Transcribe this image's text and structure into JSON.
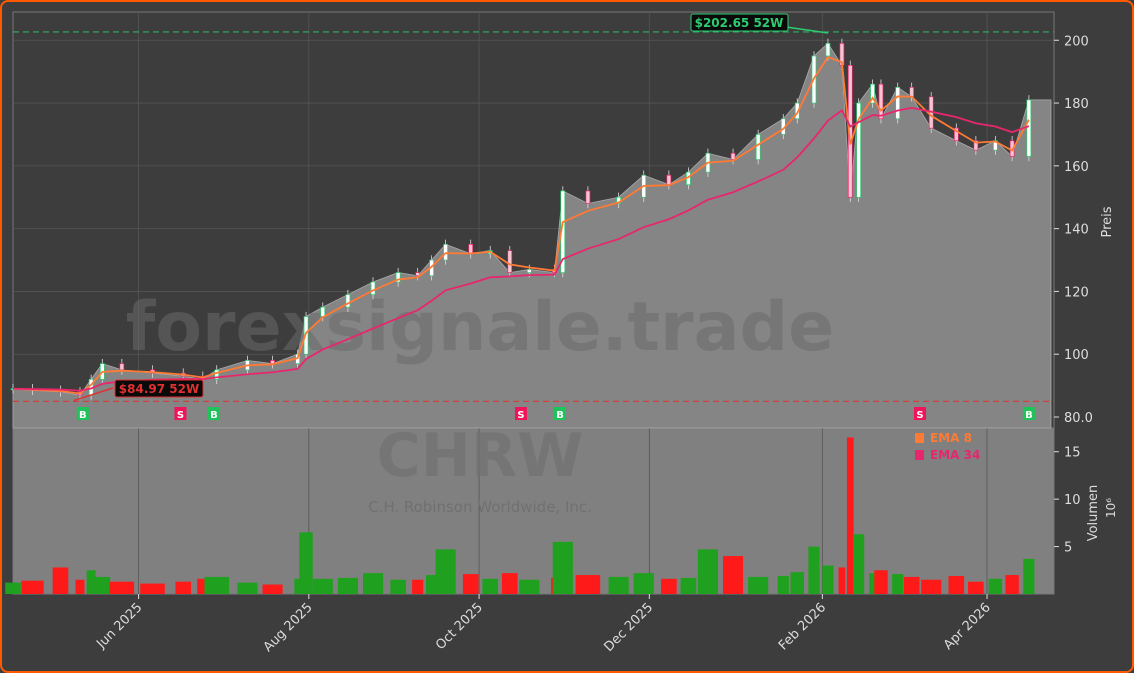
{
  "chart_data": {
    "type": "candlestick",
    "ticker": "CHRW",
    "company": "C.H. Robinson Worldwide, Inc.",
    "watermark": "forexsignale.trade",
    "price_axis": {
      "label": "Preis",
      "ticks": [
        80,
        100,
        120,
        140,
        160,
        180,
        200
      ],
      "ylim": [
        76.5,
        209
      ]
    },
    "volume_axis": {
      "label": "Volumen",
      "unit": "10⁶",
      "ticks": [
        5,
        10,
        15
      ],
      "ylim": [
        0,
        17.5
      ]
    },
    "x_ticks": [
      {
        "label": "Jun 2025",
        "date": "2025-06-01"
      },
      {
        "label": "Aug 2025",
        "date": "2025-08-01"
      },
      {
        "label": "Oct 2025",
        "date": "2025-10-01"
      },
      {
        "label": "Dec 2025",
        "date": "2025-12-01"
      },
      {
        "label": "Feb 2026",
        "date": "2026-02-01"
      },
      {
        "label": "Apr 2026",
        "date": "2026-04-01"
      }
    ],
    "xlim": [
      "2025-04-17",
      "2026-04-25"
    ],
    "grid": true,
    "legend": {
      "placement": "upper-right of volume panel",
      "entries": [
        {
          "name": "EMA 8",
          "color": "#ff7a33"
        },
        {
          "name": "EMA 34",
          "color": "#e8266e"
        }
      ]
    },
    "high_52w": {
      "value": 202.65,
      "label": "$202.65 52W",
      "date": "2026-02-03",
      "color": "#2ecc71"
    },
    "low_52w": {
      "value": 84.97,
      "label": "$84.97 52W",
      "date": "2025-05-11",
      "color": "#e03030"
    },
    "signals": [
      {
        "type": "B",
        "date": "2025-05-12"
      },
      {
        "type": "S",
        "date": "2025-06-16"
      },
      {
        "type": "B",
        "date": "2025-06-28"
      },
      {
        "type": "S",
        "date": "2025-10-16"
      },
      {
        "type": "B",
        "date": "2025-10-30"
      },
      {
        "type": "S",
        "date": "2026-03-08"
      },
      {
        "type": "B",
        "date": "2026-04-16"
      }
    ],
    "series": {
      "dates": [
        "2025-04-17",
        "2025-04-24",
        "2025-05-04",
        "2025-05-11",
        "2025-05-15",
        "2025-05-19",
        "2025-05-26",
        "2025-06-06",
        "2025-06-17",
        "2025-06-24",
        "2025-06-29",
        "2025-07-10",
        "2025-07-19",
        "2025-07-28",
        "2025-07-31",
        "2025-08-06",
        "2025-08-15",
        "2025-08-24",
        "2025-09-02",
        "2025-09-09",
        "2025-09-14",
        "2025-09-19",
        "2025-09-28",
        "2025-10-05",
        "2025-10-12",
        "2025-10-19",
        "2025-10-28",
        "2025-10-31",
        "2025-11-09",
        "2025-11-20",
        "2025-11-29",
        "2025-12-08",
        "2025-12-15",
        "2025-12-22",
        "2025-12-31",
        "2026-01-09",
        "2026-01-18",
        "2026-01-23",
        "2026-01-29",
        "2026-02-03",
        "2026-02-08",
        "2026-02-11",
        "2026-02-14",
        "2026-02-19",
        "2026-02-22",
        "2026-02-28",
        "2026-03-05",
        "2026-03-12",
        "2026-03-21",
        "2026-03-28",
        "2026-04-04",
        "2026-04-10",
        "2026-04-16"
      ],
      "close": [
        89,
        88.5,
        88,
        87,
        92,
        97,
        95,
        94,
        93,
        92,
        95,
        98,
        97,
        100,
        112,
        115,
        119,
        123,
        126,
        125,
        130,
        135,
        132,
        133,
        126,
        127,
        126,
        152,
        148,
        150,
        157,
        154,
        158,
        164,
        162,
        170,
        175,
        180,
        195,
        199,
        192,
        150,
        180,
        186,
        175,
        185,
        182,
        172,
        168,
        165,
        168,
        163,
        181
      ],
      "volume": [
        1.2,
        1.4,
        2.8,
        1.5,
        2.5,
        1.8,
        1.3,
        1.1,
        1.3,
        1.6,
        1.8,
        1.2,
        1.0,
        1.6,
        6.5,
        1.6,
        1.7,
        2.2,
        1.5,
        1.5,
        2.0,
        4.7,
        2.1,
        1.6,
        2.2,
        1.5,
        1.7,
        5.5,
        2.0,
        1.8,
        2.2,
        1.6,
        1.7,
        4.7,
        4.0,
        1.8,
        1.9,
        2.3,
        5.0,
        3.0,
        2.8,
        16.5,
        6.3,
        2.2,
        2.5,
        2.1,
        1.8,
        1.5,
        1.9,
        1.3,
        1.6,
        2.0,
        3.7
      ]
    }
  }
}
